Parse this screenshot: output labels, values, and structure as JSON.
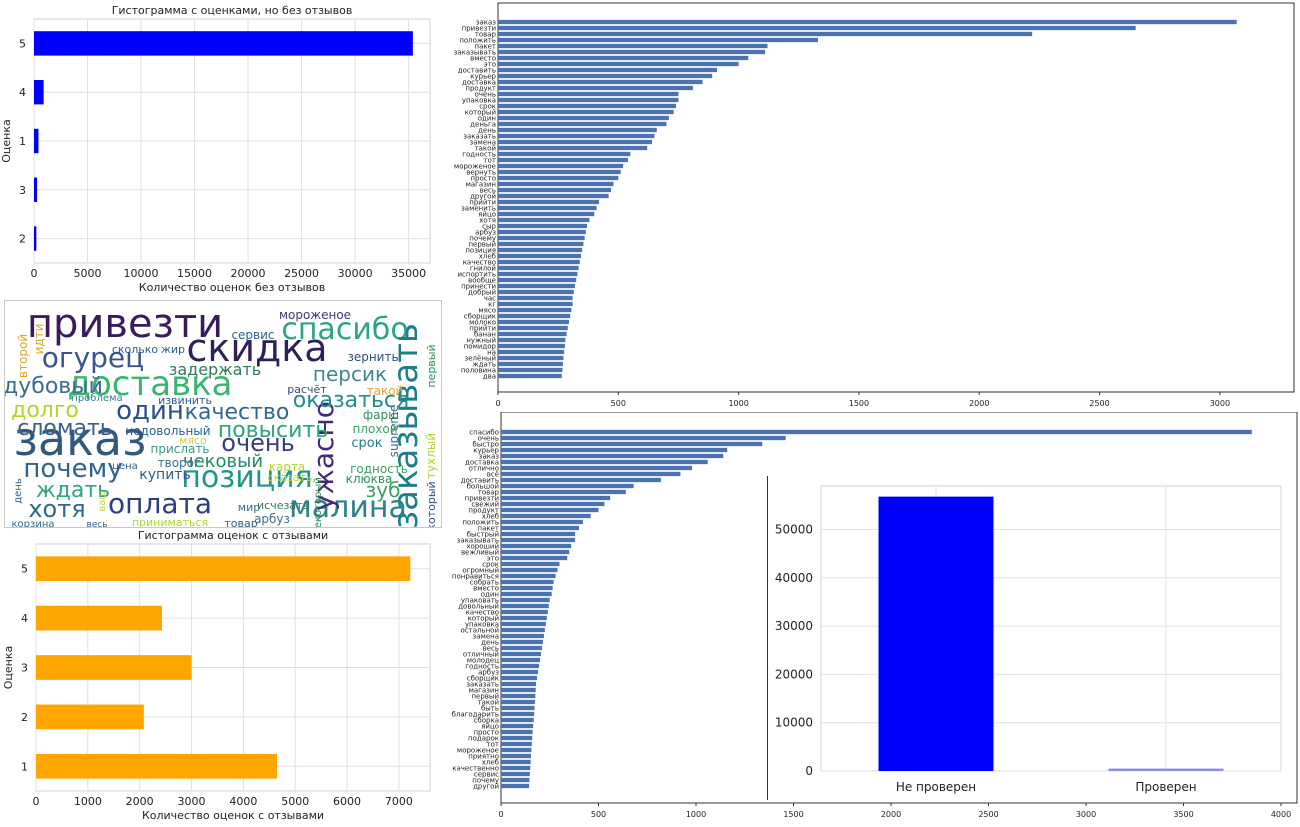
{
  "chart_data": [
    {
      "id": "hist_no_review",
      "type": "bar",
      "orientation": "horizontal",
      "title": "Гистограмма с оценками, но без отзывов",
      "xlabel": "Количество оценок без отзывов",
      "ylabel": "Оценка",
      "categories": [
        "5",
        "4",
        "1",
        "3",
        "2"
      ],
      "values": [
        35400,
        900,
        420,
        290,
        220
      ],
      "xlim": [
        0,
        37000
      ],
      "xticks": [
        "0",
        "5000",
        "10000",
        "15000",
        "20000",
        "25000",
        "30000",
        "35000"
      ],
      "color": "#0000ff",
      "grid": true
    },
    {
      "id": "hist_with_review",
      "type": "bar",
      "orientation": "horizontal",
      "title": "Гистограмма оценок с отзывами",
      "xlabel": "Количество оценок с отзывами",
      "ylabel": "Оценка",
      "categories": [
        "5",
        "4",
        "3",
        "2",
        "1"
      ],
      "values": [
        7220,
        2430,
        3000,
        2080,
        4650
      ],
      "xlim": [
        0,
        7600
      ],
      "xticks": [
        "0",
        "1000",
        "2000",
        "3000",
        "4000",
        "5000",
        "6000",
        "7000"
      ],
      "color": "#ffa500",
      "grid": true
    },
    {
      "id": "word_freq_1",
      "type": "bar",
      "orientation": "horizontal",
      "categories": [
        "заказ",
        "привезти",
        "товар",
        "положить",
        "пакет",
        "заказывать",
        "вместо",
        "это",
        "доставить",
        "курьер",
        "доставка",
        "продукт",
        "очень",
        "упаковка",
        "срок",
        "который",
        "один",
        "деньга",
        "день",
        "заказать",
        "замена",
        "такой",
        "годность",
        "тот",
        "мороженое",
        "вернуть",
        "просто",
        "магазин",
        "весь",
        "другой",
        "прийти",
        "заменить",
        "яйцо",
        "хотя",
        "сыр",
        "арбуз",
        "почему",
        "первый",
        "позиция",
        "хлеб",
        "качество",
        "гнилой",
        "испортить",
        "вообще",
        "принести",
        "добрый",
        "час",
        "кг",
        "мясо",
        "сборщик",
        "молоко",
        "прийти",
        "банан",
        "нужный",
        "помидор",
        "на",
        "зелёный",
        "ждать",
        "половина",
        "два"
      ],
      "values": [
        3070,
        2650,
        2220,
        1330,
        1120,
        1110,
        1040,
        1000,
        910,
        890,
        850,
        810,
        750,
        750,
        740,
        730,
        710,
        700,
        660,
        650,
        640,
        620,
        550,
        540,
        520,
        510,
        500,
        480,
        470,
        460,
        420,
        410,
        400,
        380,
        370,
        365,
        360,
        355,
        350,
        345,
        340,
        335,
        330,
        325,
        320,
        315,
        310,
        310,
        305,
        300,
        295,
        290,
        285,
        280,
        278,
        275,
        272,
        270,
        268,
        265
      ],
      "xlim": [
        0,
        3200
      ],
      "xticks": [
        "0",
        "500",
        "1000",
        "1500",
        "2000",
        "2500",
        "3000"
      ],
      "color": "#4c72b0"
    },
    {
      "id": "word_freq_2",
      "type": "bar",
      "orientation": "horizontal",
      "categories": [
        "спасибо",
        "очень",
        "быстро",
        "курьер",
        "заказ",
        "доставка",
        "отлично",
        "всё",
        "доставить",
        "большой",
        "товар",
        "привезти",
        "свежий",
        "продукт",
        "хлеб",
        "положить",
        "пакет",
        "быстрый",
        "заказывать",
        "хороший",
        "вежливый",
        "это",
        "срок",
        "огромный",
        "понравиться",
        "собрать",
        "вместо",
        "один",
        "упаковать",
        "довольный",
        "качество",
        "который",
        "упаковка",
        "остальной",
        "замена",
        "день",
        "весь",
        "отличный",
        "молодец",
        "годность",
        "арбуз",
        "сборщик",
        "заказать",
        "магазин",
        "первый",
        "такой",
        "быть",
        "благодарить",
        "сборка",
        "яйцо",
        "просто",
        "подарок",
        "тот",
        "мороженое",
        "приятно",
        "хлеб",
        "качественно",
        "сервис",
        "почему",
        "другой"
      ],
      "values": [
        3850,
        1460,
        1340,
        1160,
        1140,
        1060,
        980,
        920,
        820,
        680,
        640,
        560,
        530,
        500,
        460,
        420,
        400,
        380,
        380,
        360,
        350,
        340,
        300,
        290,
        280,
        270,
        265,
        260,
        250,
        245,
        240,
        235,
        230,
        225,
        220,
        215,
        210,
        205,
        200,
        195,
        190,
        185,
        180,
        178,
        176,
        174,
        172,
        170,
        168,
        165,
        162,
        160,
        158,
        156,
        154,
        152,
        150,
        148,
        146,
        144
      ],
      "xlim": [
        0,
        4000
      ],
      "xticks": [
        "0",
        "500",
        "1000",
        "1500",
        "2000",
        "2500",
        "3000",
        "3500",
        "4000"
      ],
      "color": "#4c72b0"
    },
    {
      "id": "verified_bar",
      "type": "bar",
      "orientation": "vertical",
      "categories": [
        "Не проверен",
        "Проверен"
      ],
      "values": [
        56800,
        500
      ],
      "ylim": [
        0,
        59000
      ],
      "yticks": [
        "0",
        "10000",
        "20000",
        "30000",
        "40000",
        "50000"
      ],
      "colors": [
        "#0000ff",
        "#8a8ce6"
      ],
      "grid": true
    }
  ],
  "wordcloud": [
    {
      "t": "привезти",
      "x": 120,
      "y": 36,
      "s": 40,
      "r": 0,
      "c": "#3b1c5a"
    },
    {
      "t": "скидка",
      "x": 252,
      "y": 60,
      "s": 38,
      "r": 0,
      "c": "#2d2158"
    },
    {
      "t": "спасибо",
      "x": 340,
      "y": 38,
      "s": 30,
      "r": 0,
      "c": "#2ea387"
    },
    {
      "t": "огурец",
      "x": 88,
      "y": 66,
      "s": 28,
      "r": 0,
      "c": "#3b538e"
    },
    {
      "t": "доставка",
      "x": 145,
      "y": 94,
      "s": 34,
      "r": 0,
      "c": "#3bb56e"
    },
    {
      "t": "заказывать",
      "x": 412,
      "y": 125,
      "s": 34,
      "r": -90,
      "c": "#1f7e8a"
    },
    {
      "t": "заказ",
      "x": 75,
      "y": 154,
      "s": 46,
      "r": 0,
      "c": "#31587f"
    },
    {
      "t": "позиция",
      "x": 242,
      "y": 186,
      "s": 30,
      "r": 0,
      "c": "#20968a"
    },
    {
      "t": "малина",
      "x": 343,
      "y": 216,
      "s": 30,
      "r": 0,
      "c": "#2c8387"
    },
    {
      "t": "оплата",
      "x": 155,
      "y": 212,
      "s": 28,
      "r": 0,
      "c": "#2d3e80"
    },
    {
      "t": "ужасно",
      "x": 328,
      "y": 155,
      "s": 28,
      "r": -90,
      "c": "#432a76"
    },
    {
      "t": "почему",
      "x": 68,
      "y": 176,
      "s": 26,
      "r": 0,
      "c": "#33638d"
    },
    {
      "t": "один",
      "x": 145,
      "y": 118,
      "s": 26,
      "r": 0,
      "c": "#2a4f8b"
    },
    {
      "t": "очень",
      "x": 253,
      "y": 150,
      "s": 24,
      "r": 0,
      "c": "#3b3b82"
    },
    {
      "t": "качество",
      "x": 232,
      "y": 118,
      "s": 22,
      "r": 0,
      "c": "#31688e"
    },
    {
      "t": "повысить",
      "x": 268,
      "y": 136,
      "s": 22,
      "r": 0,
      "c": "#2aa67a"
    },
    {
      "t": "оказаться",
      "x": 346,
      "y": 106,
      "s": 22,
      "r": 0,
      "c": "#238b8c"
    },
    {
      "t": "персик",
      "x": 345,
      "y": 80,
      "s": 20,
      "r": 0,
      "c": "#3b8a8c"
    },
    {
      "t": "дубовый",
      "x": 48,
      "y": 92,
      "s": 22,
      "r": 0,
      "c": "#3b6e8c"
    },
    {
      "t": "долго",
      "x": 40,
      "y": 116,
      "s": 22,
      "r": 0,
      "c": "#b0d630"
    },
    {
      "t": "сломать",
      "x": 60,
      "y": 134,
      "s": 22,
      "r": 0,
      "c": "#3a5e8c"
    },
    {
      "t": "ждать",
      "x": 68,
      "y": 196,
      "s": 22,
      "r": 0,
      "c": "#2fa584"
    },
    {
      "t": "хотя",
      "x": 52,
      "y": 216,
      "s": 24,
      "r": 0,
      "c": "#2f6a8c"
    },
    {
      "t": "чековый",
      "x": 218,
      "y": 166,
      "s": 18,
      "r": 0,
      "c": "#238a62"
    },
    {
      "t": "задержать",
      "x": 210,
      "y": 74,
      "s": 16,
      "r": 0,
      "c": "#2c7a58"
    },
    {
      "t": "зуб",
      "x": 378,
      "y": 196,
      "s": 20,
      "r": 0,
      "c": "#3aa35b"
    },
    {
      "t": "купить",
      "x": 160,
      "y": 178,
      "s": 14,
      "r": 0,
      "c": "#2c5d8c"
    },
    {
      "t": "сервис",
      "x": 248,
      "y": 38,
      "s": 12,
      "r": 0,
      "c": "#2f5e8a"
    },
    {
      "t": "мороженое",
      "x": 310,
      "y": 18,
      "s": 12,
      "r": 0,
      "c": "#3a3a7c"
    },
    {
      "t": "зернить",
      "x": 368,
      "y": 60,
      "s": 12,
      "r": 0,
      "c": "#2f4d80"
    },
    {
      "t": "расчёт",
      "x": 302,
      "y": 92,
      "s": 11,
      "r": 0,
      "c": "#2f4d80"
    },
    {
      "t": "такой",
      "x": 380,
      "y": 94,
      "s": 12,
      "r": 0,
      "c": "#e0a430"
    },
    {
      "t": "плохой",
      "x": 370,
      "y": 132,
      "s": 12,
      "r": 0,
      "c": "#3aa35b"
    },
    {
      "t": "фарш",
      "x": 376,
      "y": 118,
      "s": 12,
      "r": 0,
      "c": "#2c8f5a"
    },
    {
      "t": "срок",
      "x": 362,
      "y": 146,
      "s": 13,
      "r": 0,
      "c": "#1f7e8a"
    },
    {
      "t": "годность",
      "x": 374,
      "y": 172,
      "s": 12,
      "r": 0,
      "c": "#3aa35b"
    },
    {
      "t": "клюква",
      "x": 364,
      "y": 182,
      "s": 12,
      "r": 0,
      "c": "#2c8f5a"
    },
    {
      "t": "карта",
      "x": 282,
      "y": 170,
      "s": 12,
      "r": 0,
      "c": "#b0d630"
    },
    {
      "t": "сказать",
      "x": 285,
      "y": 180,
      "s": 11,
      "r": 0,
      "c": "#c8d43a"
    },
    {
      "t": "исчезать",
      "x": 278,
      "y": 208,
      "s": 11,
      "r": 0,
      "c": "#2c7a58"
    },
    {
      "t": "арбуз",
      "x": 267,
      "y": 222,
      "s": 12,
      "r": 0,
      "c": "#3b6e8c"
    },
    {
      "t": "мир",
      "x": 244,
      "y": 210,
      "s": 11,
      "r": 0,
      "c": "#3b6e8c"
    },
    {
      "t": "товар",
      "x": 236,
      "y": 226,
      "s": 11,
      "r": 0,
      "c": "#2f5e8a"
    },
    {
      "t": "приниматься",
      "x": 165,
      "y": 225,
      "s": 11,
      "r": 0,
      "c": "#b0d630"
    },
    {
      "t": "творог",
      "x": 174,
      "y": 166,
      "s": 12,
      "r": 0,
      "c": "#3b6e8c"
    },
    {
      "t": "цена",
      "x": 120,
      "y": 168,
      "s": 10,
      "r": 0,
      "c": "#2c5d8c"
    },
    {
      "t": "прислать",
      "x": 175,
      "y": 152,
      "s": 12,
      "r": 0,
      "c": "#3a9b7b"
    },
    {
      "t": "мясо",
      "x": 188,
      "y": 143,
      "s": 11,
      "r": 0,
      "c": "#c8d43a"
    },
    {
      "t": "недовольный",
      "x": 163,
      "y": 134,
      "s": 12,
      "r": 0,
      "c": "#2c5d8c"
    },
    {
      "t": "извинить",
      "x": 180,
      "y": 103,
      "s": 11,
      "r": 0,
      "c": "#2c5d8c"
    },
    {
      "t": "проблема",
      "x": 92,
      "y": 100,
      "s": 10,
      "r": 0,
      "c": "#2f7e8a"
    },
    {
      "t": "сколько",
      "x": 130,
      "y": 52,
      "s": 11,
      "r": 0,
      "c": "#2c5d8c"
    },
    {
      "t": "жир",
      "x": 168,
      "y": 52,
      "s": 11,
      "r": 0,
      "c": "#2c5d8c"
    },
    {
      "t": "корзина",
      "x": 28,
      "y": 226,
      "s": 10,
      "r": 0,
      "c": "#2f6a8c"
    },
    {
      "t": "весь",
      "x": 92,
      "y": 226,
      "s": 9,
      "r": 0,
      "c": "#2f5e8a"
    },
    {
      "t": "второй",
      "x": 22,
      "y": 55,
      "s": 12,
      "r": -90,
      "c": "#e0a430"
    },
    {
      "t": "идти",
      "x": 38,
      "y": 38,
      "s": 12,
      "r": -90,
      "c": "#e0a430"
    },
    {
      "t": "первый",
      "x": 430,
      "y": 65,
      "s": 11,
      "r": -90,
      "c": "#2c8f5a"
    },
    {
      "t": "тухлый",
      "x": 430,
      "y": 155,
      "s": 12,
      "r": -90,
      "c": "#b0d630"
    },
    {
      "t": "который",
      "x": 430,
      "y": 205,
      "s": 11,
      "r": -90,
      "c": "#2f4d80"
    },
    {
      "t": "supreme",
      "x": 393,
      "y": 130,
      "s": 12,
      "r": -90,
      "c": "#3b6e8c"
    },
    {
      "t": "некоторый",
      "x": 316,
      "y": 205,
      "s": 10,
      "r": -90,
      "c": "#2c7a58"
    },
    {
      "t": "день",
      "x": 16,
      "y": 190,
      "s": 10,
      "r": -90,
      "c": "#2f5e8a"
    },
    {
      "t": "ваш",
      "x": 100,
      "y": 200,
      "s": 10,
      "r": -90,
      "c": "#c8d43a"
    }
  ]
}
